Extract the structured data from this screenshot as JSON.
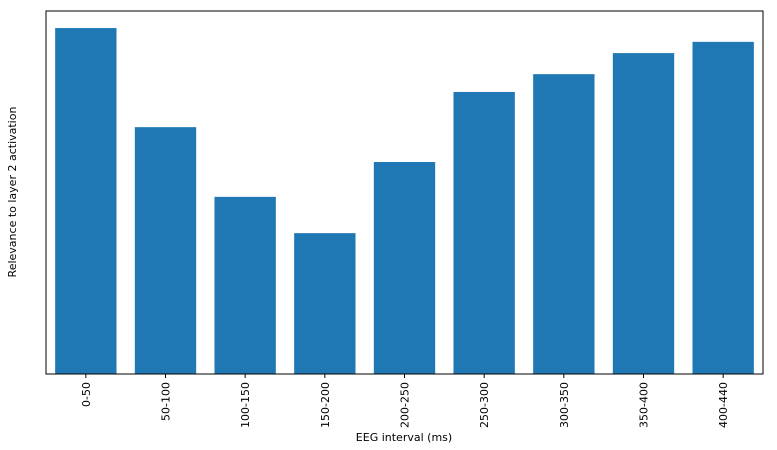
{
  "chart_data": {
    "type": "bar",
    "xlabel": "EEG interval (ms)",
    "ylabel": "Relevance to layer 2 activation",
    "categories": [
      "0-50",
      "50-100",
      "100-150",
      "150-200",
      "200-250",
      "250-300",
      "300-350",
      "350-400",
      "400-440"
    ],
    "values": [
      0.953,
      0.68,
      0.488,
      0.388,
      0.584,
      0.777,
      0.826,
      0.884,
      0.915
    ],
    "color": "#1f77b4",
    "ylim": [
      0,
      1
    ]
  }
}
